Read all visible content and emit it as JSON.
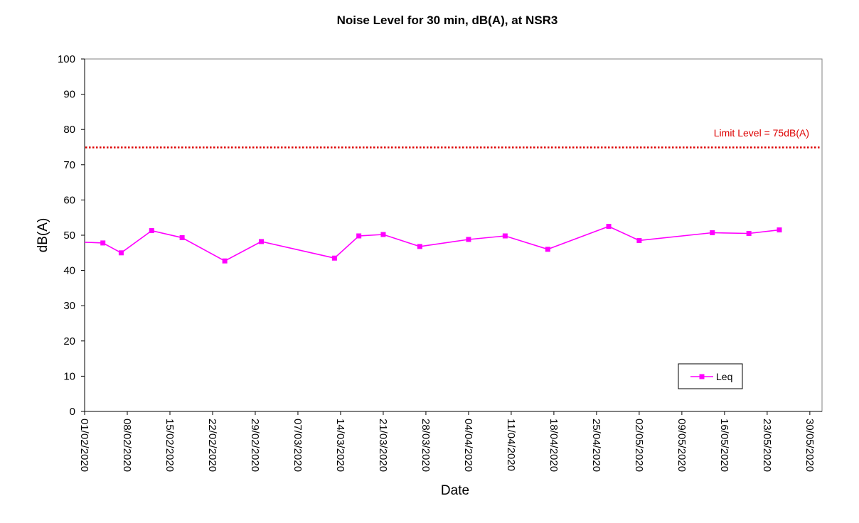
{
  "colors": {
    "series": "#ff00ff",
    "limit": "#dd0000",
    "axis": "#000000",
    "plot_border": "#808080"
  },
  "chart_data": {
    "type": "line",
    "title": "Noise Level for 30 min, dB(A), at NSR3",
    "xlabel": "Date",
    "ylabel": "dB(A)",
    "ylim": [
      0,
      100
    ],
    "y_ticks": [
      "0",
      "10",
      "20",
      "30",
      "40",
      "50",
      "60",
      "70",
      "80",
      "90",
      "100"
    ],
    "xlim": [
      "01/02/2020",
      "01/06/2020"
    ],
    "x_tick_labels": [
      "01/02/2020",
      "08/02/2020",
      "15/02/2020",
      "22/02/2020",
      "29/02/2020",
      "07/03/2020",
      "14/03/2020",
      "21/03/2020",
      "28/03/2020",
      "04/04/2020",
      "11/04/2020",
      "18/04/2020",
      "25/04/2020",
      "02/05/2020",
      "09/05/2020",
      "16/05/2020",
      "23/05/2020",
      "30/05/2020"
    ],
    "grid": false,
    "legend_position": "bottom-right",
    "series": [
      {
        "name": "Leq",
        "marker": "square",
        "x": [
          "01/02/2020",
          "04/02/2020",
          "07/02/2020",
          "12/02/2020",
          "17/02/2020",
          "24/02/2020",
          "01/03/2020",
          "13/03/2020",
          "17/03/2020",
          "21/03/2020",
          "27/03/2020",
          "04/04/2020",
          "10/04/2020",
          "17/04/2020",
          "27/04/2020",
          "02/05/2020",
          "14/05/2020",
          "20/05/2020",
          "25/05/2020"
        ],
        "y": [
          48.0,
          47.8,
          45.0,
          51.3,
          49.3,
          42.7,
          48.2,
          43.5,
          49.8,
          50.2,
          46.8,
          48.8,
          49.8,
          46.0,
          52.5,
          48.5,
          50.7,
          50.5,
          51.5
        ],
        "markers_from_index": 1
      }
    ],
    "reference_lines": [
      {
        "label": "Limit Level = 75dB(A)",
        "y": 75,
        "style": "dotted"
      }
    ]
  }
}
